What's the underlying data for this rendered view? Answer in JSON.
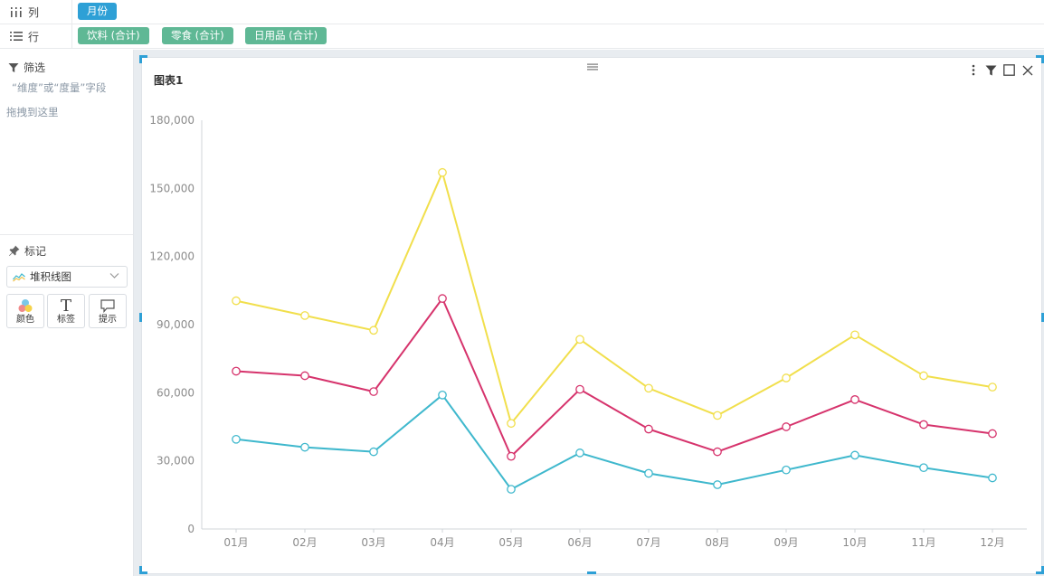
{
  "shelves": {
    "columns": {
      "label": "列",
      "pills": [
        "月份"
      ]
    },
    "rows": {
      "label": "行",
      "pills": [
        "饮料 (合计)",
        "零食 (合计)",
        "日用品 (合计)"
      ]
    }
  },
  "filter": {
    "title": "筛选",
    "hint_line1": "“维度”或“度量”字段",
    "hint_line2": "拖拽到这里"
  },
  "marks": {
    "title": "标记",
    "chart_type": "堆积线图",
    "buttons": [
      "颜色",
      "标签",
      "提示"
    ]
  },
  "colors": {
    "accent": "#2ea0d6",
    "pill_green": "#5fb895",
    "series_1": "#3fb8cd",
    "series_2": "#d6336c",
    "series_3": "#f1df4c"
  },
  "icons": {
    "columns": "columns-icon",
    "rows": "rows-icon",
    "filter": "filter-icon",
    "marks": "pin-icon",
    "color": "color-palette-icon",
    "label": "text-t-icon",
    "tooltip": "speech-bubble-icon",
    "more": "more-vertical-icon",
    "chart_filter": "funnel-icon",
    "maximize": "square-icon",
    "close": "close-icon",
    "drag": "drag-handle-icon",
    "chart_type": "area-chart-icon"
  },
  "chart_data": {
    "type": "line",
    "stacked": true,
    "title": "图表1",
    "categories": [
      "01月",
      "02月",
      "03月",
      "04月",
      "05月",
      "06月",
      "07月",
      "08月",
      "09月",
      "10月",
      "11月",
      "12月"
    ],
    "series": [
      {
        "name": "饮料 (合计)",
        "color": "#3fb8cd",
        "values": [
          39500,
          36000,
          34000,
          59000,
          17500,
          33500,
          24500,
          19500,
          26000,
          32500,
          27000,
          22500
        ]
      },
      {
        "name": "零食 (合计)",
        "color": "#d6336c",
        "values": [
          30000,
          31500,
          26500,
          42500,
          14500,
          28000,
          19500,
          14500,
          19000,
          24500,
          19000,
          19500
        ]
      },
      {
        "name": "日用品 (合计)",
        "color": "#f1df4c",
        "values": [
          31000,
          26500,
          27000,
          55500,
          14500,
          22000,
          18000,
          16000,
          21500,
          28500,
          21500,
          20500
        ]
      }
    ],
    "yticks": [
      "0",
      "30,000",
      "60,000",
      "90,000",
      "120,000",
      "150,000",
      "180,000"
    ],
    "ylim": [
      0,
      180000
    ],
    "legend": "none",
    "grid": false
  }
}
